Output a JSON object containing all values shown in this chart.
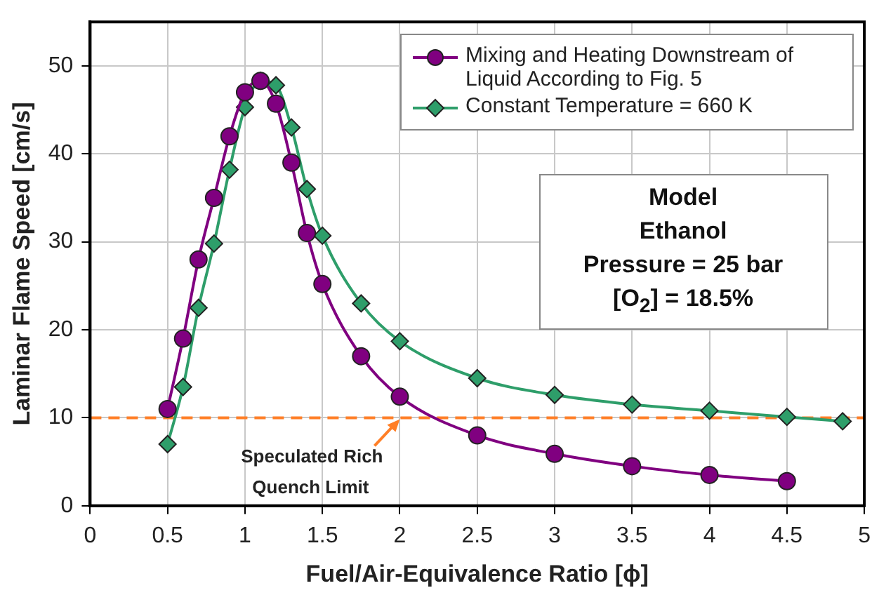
{
  "chart_data": {
    "type": "line",
    "xlabel": "Fuel/Air-Equivalence Ratio [ϕ]",
    "ylabel": "Laminar Flame Speed [cm/s]",
    "xlim": [
      0,
      5
    ],
    "xticks": [
      0,
      0.5,
      1,
      1.5,
      2,
      2.5,
      3,
      3.5,
      4,
      4.5,
      5
    ],
    "ylim": [
      0,
      55
    ],
    "yticks": [
      0,
      10,
      20,
      30,
      40,
      50
    ],
    "grid": true,
    "legend": "top right",
    "series": [
      {
        "name": "Mixing and Heating Downstream of Liquid According to Fig. 5",
        "color": "#800080",
        "marker": "circle",
        "x": [
          0.5,
          0.6,
          0.7,
          0.8,
          0.9,
          1.0,
          1.1,
          1.2,
          1.3,
          1.4,
          1.5,
          1.75,
          2,
          2.5,
          3,
          3.5,
          4,
          4.5
        ],
        "values": [
          11,
          19,
          28,
          35,
          42,
          47,
          48.3,
          45.7,
          39,
          31,
          25.2,
          17,
          12.4,
          8,
          5.9,
          4.5,
          3.5,
          2.8
        ]
      },
      {
        "name": "Constant Temperature = 660 K",
        "color": "#2e9e6a",
        "marker": "diamond",
        "x": [
          0.5,
          0.6,
          0.7,
          0.8,
          0.9,
          1.0,
          1.1,
          1.2,
          1.3,
          1.4,
          1.5,
          1.75,
          2,
          2.5,
          3,
          3.5,
          4,
          4.5,
          4.86
        ],
        "values": [
          7,
          13.5,
          22.5,
          29.8,
          38.2,
          45.3,
          48.3,
          47.8,
          43,
          36,
          30.7,
          23,
          18.7,
          14.5,
          12.6,
          11.5,
          10.8,
          10.1,
          9.6
        ]
      }
    ],
    "ref_lines": [
      {
        "axis": "y",
        "value": 10,
        "color": "#ff7f27",
        "line_style": "dashed"
      }
    ],
    "annotations": [
      "Model",
      "Ethanol",
      "Pressure = 25 bar",
      "[O$_{2}$] = 18.5%",
      {
        "text": "Speculated Rich Quench Limit",
        "x": 2,
        "y": 10
      }
    ]
  }
}
